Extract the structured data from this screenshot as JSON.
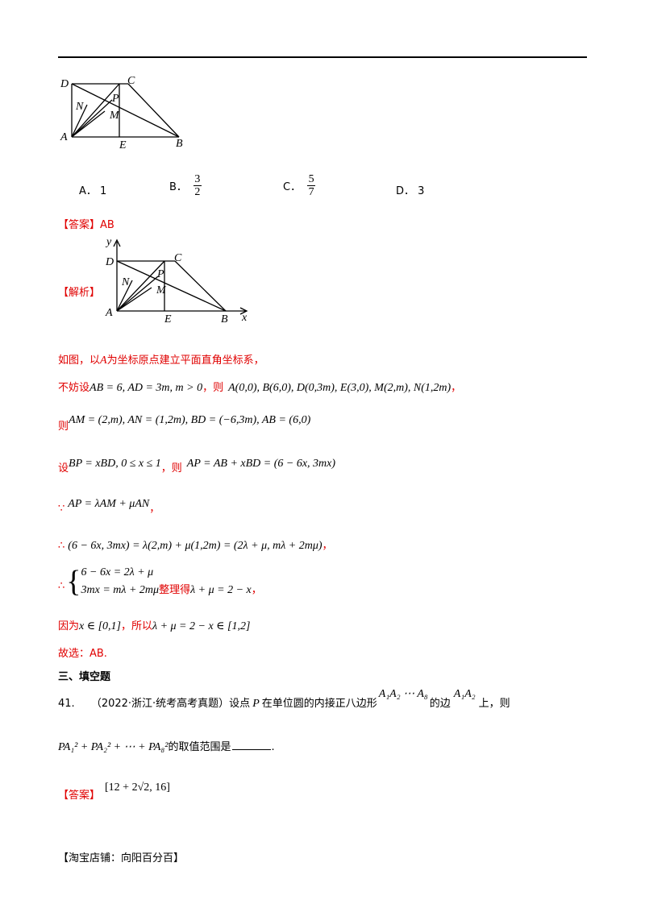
{
  "figure1": {
    "labels": {
      "D": "D",
      "C": "C",
      "N": "N",
      "P": "P",
      "M": "M",
      "A": "A",
      "E": "E",
      "B": "B"
    }
  },
  "options": {
    "a_letter": "A．",
    "a_value": "1",
    "b_letter": "B．",
    "b_num": "3",
    "b_den": "2",
    "c_letter": "C．",
    "c_num": "5",
    "c_den": "7",
    "d_letter": "D．",
    "d_value": "3"
  },
  "answer1": {
    "label": "【答案】",
    "value": "AB"
  },
  "analysis": {
    "label": "【解析】",
    "figure_labels": {
      "y": "y",
      "x": "x",
      "D": "D",
      "C": "C",
      "N": "N",
      "P": "P",
      "M": "M",
      "A": "A",
      "E": "E",
      "B": "B"
    },
    "line1_a": "如图，以",
    "line1_b": "A",
    "line1_c": "为坐标原点建立平面直角坐标系，",
    "line2_a": "不妨设",
    "line2_m1": "AB = 6, AD = 3m, m > 0",
    "line2_b": "，则",
    "line2_m2": "A(0,0), B(6,0), D(0,3m), E(3,0), M(2,m), N(1,2m)",
    "line2_c": "，",
    "line3_a": "则",
    "line3_m": "AM = (2,m), AN = (1,2m), BD = (−6,3m), AB = (6,0)",
    "line4_a": "设",
    "line4_m1": "BP = xBD, 0 ≤ x ≤ 1",
    "line4_b": "，则",
    "line4_m2": "AP = AB + xBD = (6 − 6x, 3mx)",
    "line5_sym": "∵",
    "line5_m": "AP = λAM + μAN",
    "line5_c": "，",
    "line6_sym": "∴",
    "line6_m": "(6 − 6x, 3mx) = λ(2,m) + μ(1,2m) = (2λ + μ, mλ + 2mμ)",
    "line6_c": "，",
    "line7_sym": "∴",
    "line7_eq1": "6 − 6x = 2λ + μ",
    "line7_eq2": "3mx = mλ + 2mμ",
    "line7_t": "整理得",
    "line7_m": "λ + μ = 2 − x",
    "line7_c": "，",
    "line8_a": "因为",
    "line8_m1": "x ∈ [0,1]",
    "line8_b": "，所以",
    "line8_m2": "λ + μ = 2 − x ∈ [1,2]",
    "line9": "故选：AB."
  },
  "section": "三、填空题",
  "q41": {
    "num": "41.",
    "src": "（2022·浙江·统考高考真题）设点",
    "p": "P",
    "t1": "在单位圆的内接正八边形",
    "poly": "A₁A₂ ⋯ A₈",
    "t2": "的边",
    "edge": "A₁A₂",
    "t3": "上，则",
    "expr": "PA₁² + PA₂² + ⋯ + PA₈²",
    "t4": "的取值范围是",
    "t5": "."
  },
  "answer41": {
    "label": "【答案】",
    "value": "[12 + 2√2, 16]"
  },
  "footer": "【淘宝店铺：向阳百分百】"
}
